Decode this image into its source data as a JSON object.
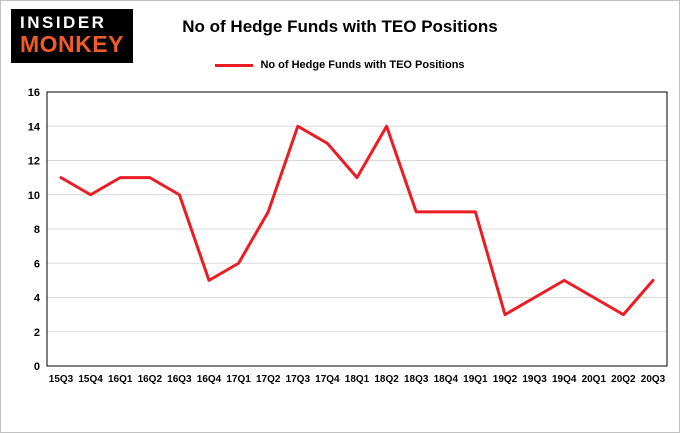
{
  "logo": {
    "line1": "INSIDER",
    "line2": "MONKEY"
  },
  "title": "No of Hedge Funds with TEO Positions",
  "legend": {
    "label": "No of Hedge Funds with TEO Positions",
    "color": "#ec1c24"
  },
  "chart_data": {
    "type": "line",
    "title": "No of Hedge Funds with TEO Positions",
    "categories": [
      "15Q3",
      "15Q4",
      "16Q1",
      "16Q2",
      "16Q3",
      "16Q4",
      "17Q1",
      "17Q2",
      "17Q3",
      "17Q4",
      "18Q1",
      "18Q2",
      "18Q3",
      "18Q4",
      "19Q1",
      "19Q2",
      "19Q3",
      "19Q4",
      "20Q1",
      "20Q2",
      "20Q3"
    ],
    "series": [
      {
        "name": "No of Hedge Funds with TEO Positions",
        "color": "#ec1c24",
        "values": [
          11,
          10,
          11,
          11,
          10,
          5,
          6,
          9,
          14,
          13,
          11,
          14,
          9,
          9,
          9,
          3,
          4,
          5,
          4,
          3,
          5
        ]
      }
    ],
    "xlabel": "",
    "ylabel": "",
    "ylim": [
      0,
      16
    ],
    "ytick_step": 2,
    "yticks": [
      0,
      2,
      4,
      6,
      8,
      10,
      12,
      14,
      16
    ],
    "grid": true,
    "grid_color": "#d9d9d9",
    "legend_position": "top"
  }
}
